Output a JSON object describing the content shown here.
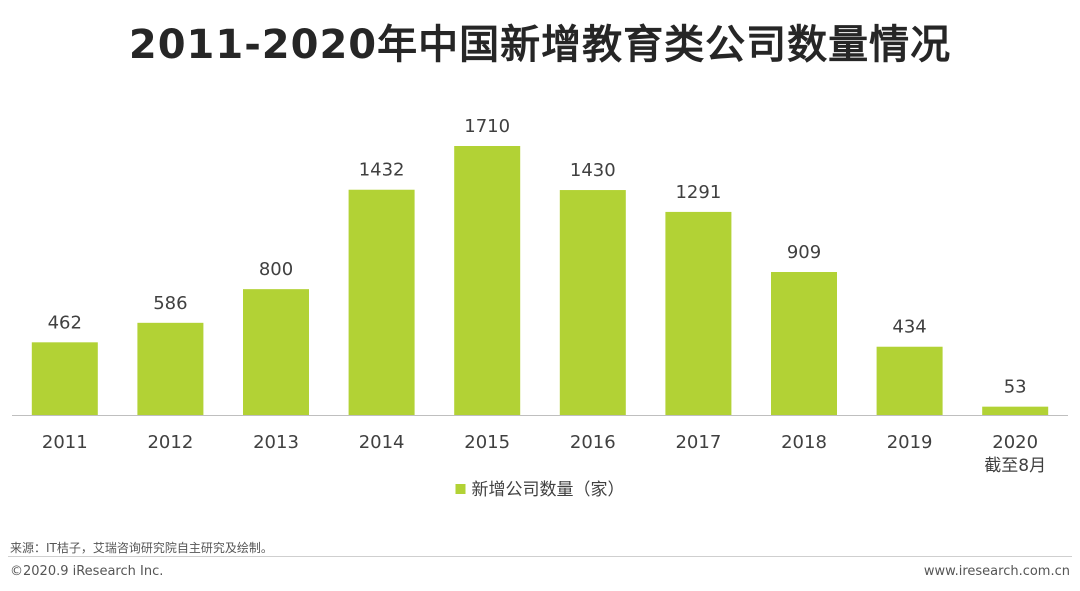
{
  "title": "2011-2020年中国新增教育类公司数量情况",
  "chart_data": {
    "type": "bar",
    "categories": [
      "2011",
      "2012",
      "2013",
      "2014",
      "2015",
      "2016",
      "2017",
      "2018",
      "2019",
      "2020"
    ],
    "category_sublabels": [
      "",
      "",
      "",
      "",
      "",
      "",
      "",
      "",
      "",
      "截至8月"
    ],
    "series": [
      {
        "name": "新增公司数量（家）",
        "values": [
          462,
          586,
          800,
          1432,
          1710,
          1430,
          1291,
          909,
          434,
          53
        ],
        "color": "#b2d235"
      }
    ],
    "ylim": [
      0,
      1710
    ],
    "grid": false,
    "legend_position": "bottom-center",
    "data_labels": true,
    "axis_color": "#bfbfbf"
  },
  "footer": {
    "source": "来源：IT桔子，艾瑞咨询研究院自主研究及绘制。",
    "copyright": "©2020.9 iResearch Inc.",
    "website": "www.iresearch.com.cn"
  }
}
